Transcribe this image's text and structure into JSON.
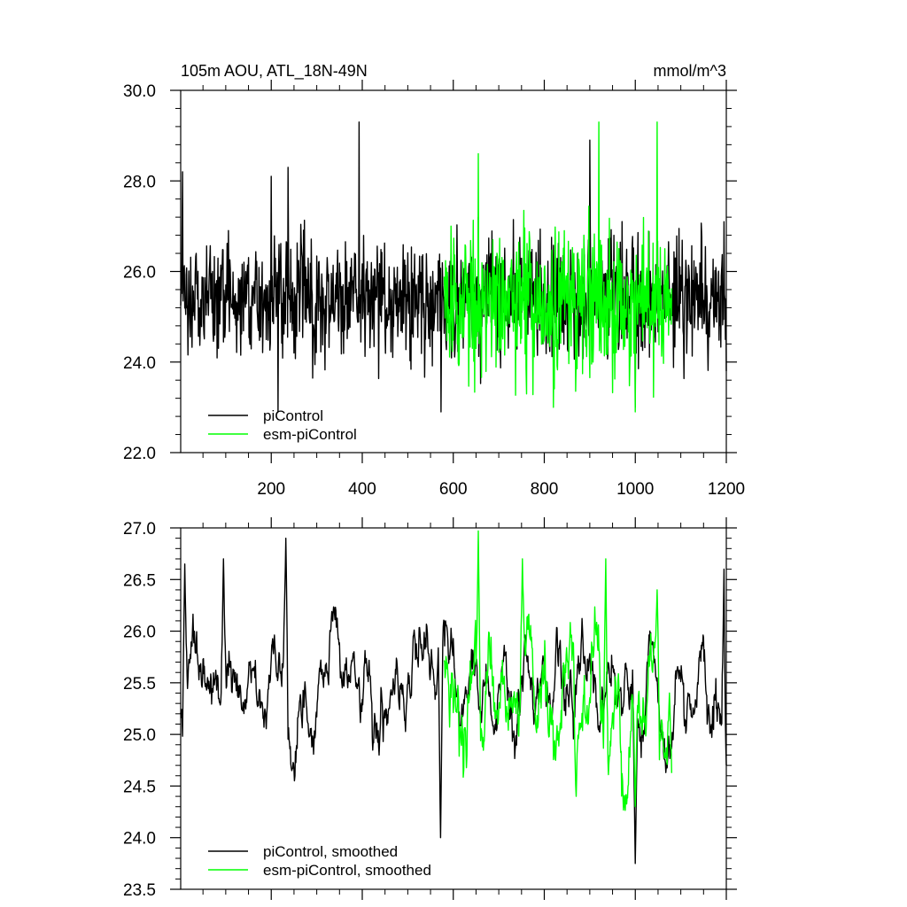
{
  "chart_data": [
    {
      "type": "line",
      "title": "105m AOU, ATL_18N-49N",
      "units": "mmol/m^3",
      "xlim": [
        1,
        1200
      ],
      "ylim": [
        22.0,
        30.0
      ],
      "x_ticks": [
        200,
        400,
        600,
        800,
        1000,
        1200
      ],
      "x_tick_labels": [
        "200",
        "400",
        "600",
        "800",
        "1000",
        "1200"
      ],
      "y_ticks": [
        22.0,
        24.0,
        26.0,
        28.0,
        30.0
      ],
      "y_tick_labels": [
        "22.0",
        "24.0",
        "26.0",
        "28.0",
        "30.0"
      ],
      "legend_position": "bottom-left",
      "series": [
        {
          "name": "piControl",
          "color": "#000000",
          "x_range": [
            1,
            1200
          ],
          "mean": 25.4,
          "amplitude": 0.75,
          "extremes": [
            [
              5,
              28.2
            ],
            [
              200,
              28.1
            ],
            [
              215,
              22.9
            ],
            [
              237,
              28.3
            ],
            [
              393,
              29.3
            ],
            [
              573,
              22.9
            ],
            [
              900,
              28.9
            ],
            [
              1000,
              23.0
            ],
            [
              1195,
              27.1
            ],
            [
              1200,
              23.8
            ]
          ]
        },
        {
          "name": "esm-piControl",
          "color": "#00ff00",
          "x_range": [
            580,
            1080
          ],
          "mean": 25.3,
          "amplitude": 0.95,
          "extremes": [
            [
              655,
              28.6
            ],
            [
              820,
              23.0
            ],
            [
              920,
              29.3
            ],
            [
              1000,
              22.9
            ],
            [
              1048,
              29.3
            ],
            [
              1075,
              25.6
            ]
          ]
        }
      ]
    },
    {
      "type": "line",
      "xlim": [
        1,
        1200
      ],
      "ylim": [
        23.5,
        27.0
      ],
      "x_ticks": [
        200,
        400,
        600,
        800,
        1000,
        1200
      ],
      "y_ticks": [
        23.5,
        24.0,
        24.5,
        25.0,
        25.5,
        26.0,
        26.5,
        27.0
      ],
      "y_tick_labels": [
        "23.5",
        "24.0",
        "24.5",
        "25.0",
        "25.5",
        "26.0",
        "26.5",
        "27.0"
      ],
      "legend_position": "bottom-left",
      "series": [
        {
          "name": "piControl, smoothed",
          "color": "#000000",
          "x_range": [
            1,
            1200
          ],
          "mean": 25.45,
          "amplitude": 0.35,
          "extremes": [
            [
              10,
              26.65
            ],
            [
              95,
              26.7
            ],
            [
              232,
              26.9
            ],
            [
              572,
              24.0
            ],
            [
              1000,
              23.75
            ],
            [
              1195,
              26.6
            ],
            [
              1200,
              24.7
            ]
          ]
        },
        {
          "name": "esm-piControl, smoothed",
          "color": "#00ff00",
          "x_range": [
            580,
            1080
          ],
          "mean": 25.3,
          "amplitude": 0.45,
          "extremes": [
            [
              655,
              26.97
            ],
            [
              752,
              26.7
            ],
            [
              870,
              24.4
            ],
            [
              935,
              26.7
            ],
            [
              1000,
              24.3
            ],
            [
              1048,
              26.4
            ],
            [
              1075,
              25.4
            ]
          ]
        }
      ]
    }
  ]
}
